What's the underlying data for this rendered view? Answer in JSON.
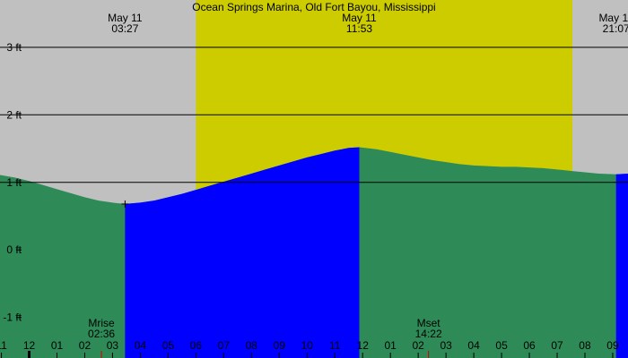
{
  "chart_data": {
    "type": "area",
    "title": "Ocean Springs Marina, Old Fort Bayou, Mississippi",
    "ylim": [
      -1.6,
      3.7
    ],
    "xlim": [
      -1.05,
      21.55
    ],
    "y_ticks": [
      {
        "value": 3,
        "label": "3 ft"
      },
      {
        "value": 2,
        "label": "2 ft"
      },
      {
        "value": 1,
        "label": "1 ft"
      },
      {
        "value": 0,
        "label": "0 ft"
      },
      {
        "value": -1,
        "label": "-1 ft"
      }
    ],
    "grid_lines": [
      1,
      2,
      3
    ],
    "x_ticks": [
      {
        "hour": -1,
        "label": "11"
      },
      {
        "hour": 0,
        "label": "12"
      },
      {
        "hour": 1,
        "label": "01"
      },
      {
        "hour": 2,
        "label": "02"
      },
      {
        "hour": 3,
        "label": "03"
      },
      {
        "hour": 4,
        "label": "04"
      },
      {
        "hour": 5,
        "label": "05"
      },
      {
        "hour": 6,
        "label": "06"
      },
      {
        "hour": 7,
        "label": "07"
      },
      {
        "hour": 8,
        "label": "08"
      },
      {
        "hour": 9,
        "label": "09"
      },
      {
        "hour": 10,
        "label": "10"
      },
      {
        "hour": 11,
        "label": "11"
      },
      {
        "hour": 12,
        "label": "12"
      },
      {
        "hour": 13,
        "label": "01"
      },
      {
        "hour": 14,
        "label": "02"
      },
      {
        "hour": 15,
        "label": "03"
      },
      {
        "hour": 16,
        "label": "04"
      },
      {
        "hour": 17,
        "label": "05"
      },
      {
        "hour": 18,
        "label": "06"
      },
      {
        "hour": 19,
        "label": "07"
      },
      {
        "hour": 20,
        "label": "08"
      },
      {
        "hour": 21,
        "label": "09"
      }
    ],
    "daylight": {
      "start": 6.0,
      "end": 19.55
    },
    "tide_events": [
      {
        "date": "May 11",
        "time": "03:27",
        "hour": 3.45,
        "height": 0.68,
        "kind": "low"
      },
      {
        "date": "May 11",
        "time": "11:53",
        "hour": 11.88,
        "height": 1.52,
        "kind": "high"
      },
      {
        "date": "May 11",
        "time": "21:07",
        "hour": 21.12,
        "height": 1.12,
        "kind": "low"
      }
    ],
    "series": [
      {
        "x": [
          -1.05,
          -0.5,
          0,
          0.5,
          1,
          1.5,
          2,
          2.5,
          3,
          3.45,
          4,
          4.5,
          5,
          5.5,
          6,
          6.5,
          7,
          7.5,
          8,
          8.5,
          9,
          9.5,
          10,
          10.5,
          11,
          11.5,
          11.88,
          12.5,
          13,
          13.5,
          14,
          14.5,
          15,
          15.5,
          16,
          16.5,
          17,
          17.5,
          18,
          18.5,
          19,
          19.5,
          20,
          20.5,
          21.12,
          21.55
        ],
        "y": [
          1.11,
          1.07,
          1.02,
          0.96,
          0.9,
          0.84,
          0.78,
          0.73,
          0.7,
          0.68,
          0.7,
          0.73,
          0.78,
          0.83,
          0.89,
          0.95,
          1.01,
          1.07,
          1.13,
          1.19,
          1.25,
          1.31,
          1.37,
          1.42,
          1.47,
          1.51,
          1.52,
          1.49,
          1.45,
          1.41,
          1.37,
          1.33,
          1.3,
          1.27,
          1.25,
          1.24,
          1.23,
          1.23,
          1.22,
          1.21,
          1.19,
          1.17,
          1.15,
          1.13,
          1.12,
          1.13
        ]
      }
    ],
    "flood_periods": [
      {
        "start": 3.45,
        "end": 11.88
      },
      {
        "start": 21.12,
        "end": 21.55
      }
    ],
    "markers": [
      {
        "label": "Mrise",
        "time": "02:36",
        "hour": 2.6
      },
      {
        "label": "Mset",
        "time": "14:22",
        "hour": 14.37
      }
    ],
    "colors": {
      "night": "#c0c0c0",
      "day": "#cccc00",
      "ebb": "#2e8b57",
      "flood": "#0000ff",
      "grid": "#000000",
      "text": "#000000",
      "marker_tick": "#cc0000"
    }
  }
}
